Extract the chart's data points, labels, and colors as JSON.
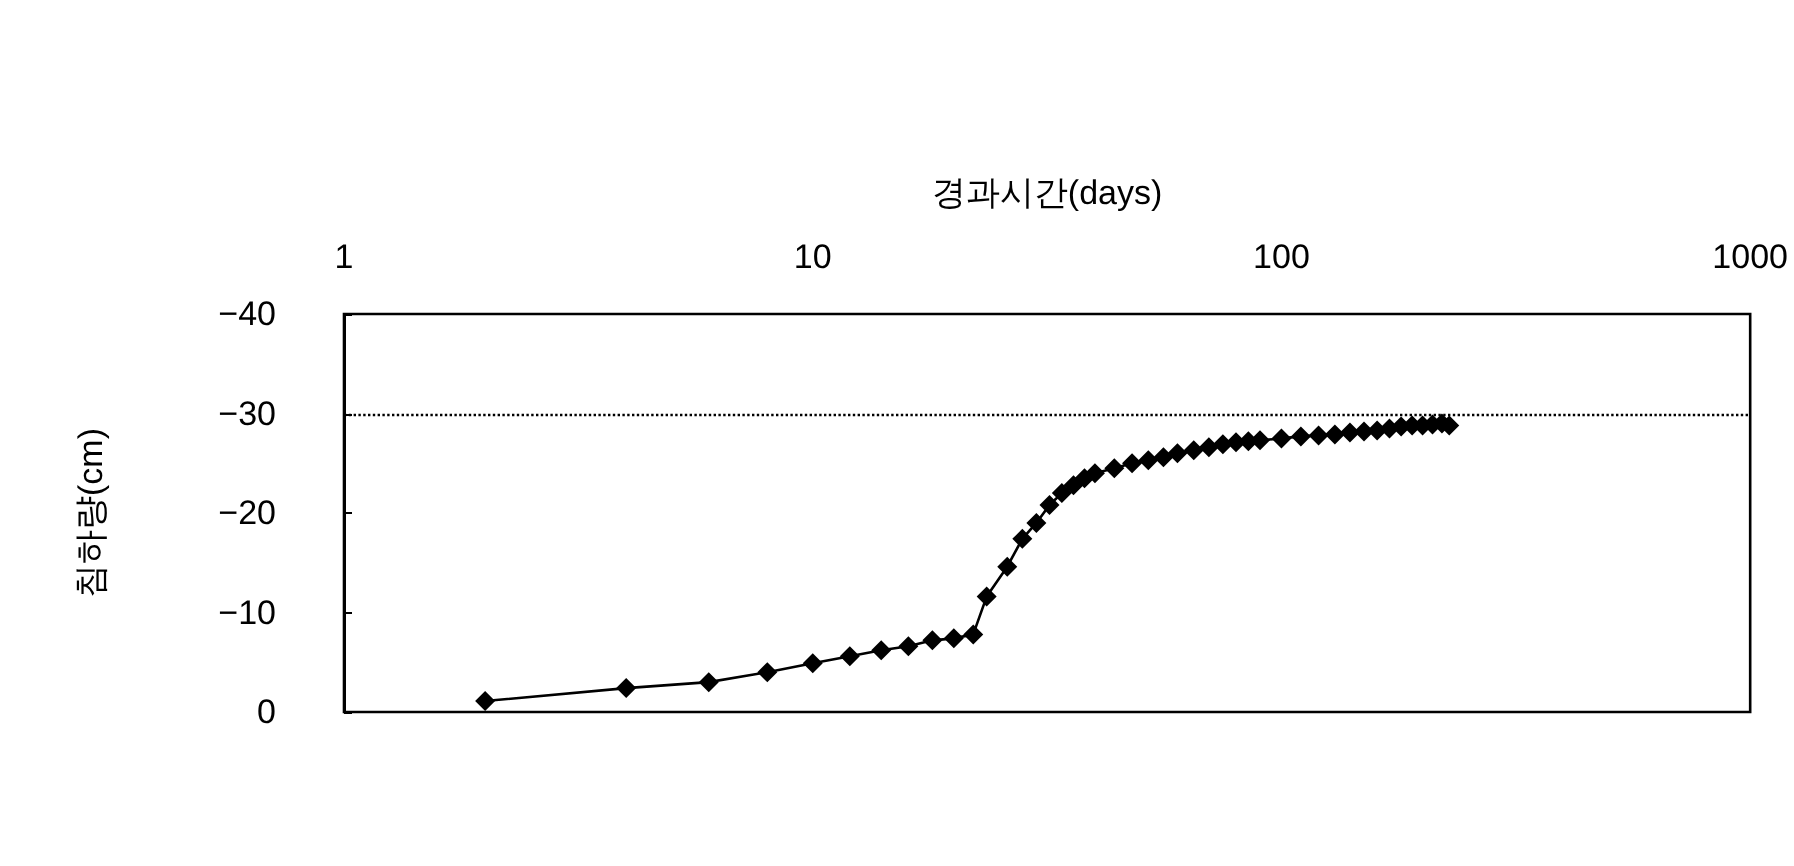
{
  "chart_data": {
    "type": "line",
    "xlabel": "경과시간(days)",
    "ylabel": "침하량(cm)",
    "log": "x",
    "xlim": [
      1,
      1000
    ],
    "xticks": [
      1,
      10,
      100,
      1000
    ],
    "ylim": [
      0,
      -40
    ],
    "yticks": [
      0,
      -10,
      -20,
      -30,
      -40
    ],
    "grid": false,
    "marker": "diamond",
    "line_style": "solid",
    "ref_lines": [
      {
        "axis": "y",
        "value": -30,
        "label": null,
        "color": "#000000",
        "line_style": "dotted"
      }
    ],
    "series": [
      {
        "color": "#000000",
        "x": [
          2,
          4,
          6,
          8,
          10,
          12,
          14,
          16,
          18,
          20,
          22,
          23.5,
          26,
          28,
          30,
          32,
          34,
          36,
          38,
          40,
          44,
          48,
          52,
          56,
          60,
          65,
          70,
          75,
          80,
          85,
          90,
          100,
          110,
          120,
          130,
          140,
          150,
          160,
          170,
          180,
          190,
          200,
          210,
          220,
          228
        ],
        "values": [
          -1.1,
          -2.4,
          -3.0,
          -4.0,
          -4.9,
          -5.6,
          -6.2,
          -6.6,
          -7.2,
          -7.4,
          -7.8,
          -11.6,
          -14.6,
          -17.4,
          -19.0,
          -20.8,
          -22.0,
          -22.8,
          -23.5,
          -24.0,
          -24.5,
          -25.0,
          -25.3,
          -25.6,
          -26.0,
          -26.3,
          -26.6,
          -26.9,
          -27.1,
          -27.2,
          -27.3,
          -27.5,
          -27.7,
          -27.8,
          -27.9,
          -28.1,
          -28.2,
          -28.3,
          -28.5,
          -28.7,
          -28.8,
          -28.8,
          -28.9,
          -29.0,
          -28.8
        ]
      }
    ]
  }
}
